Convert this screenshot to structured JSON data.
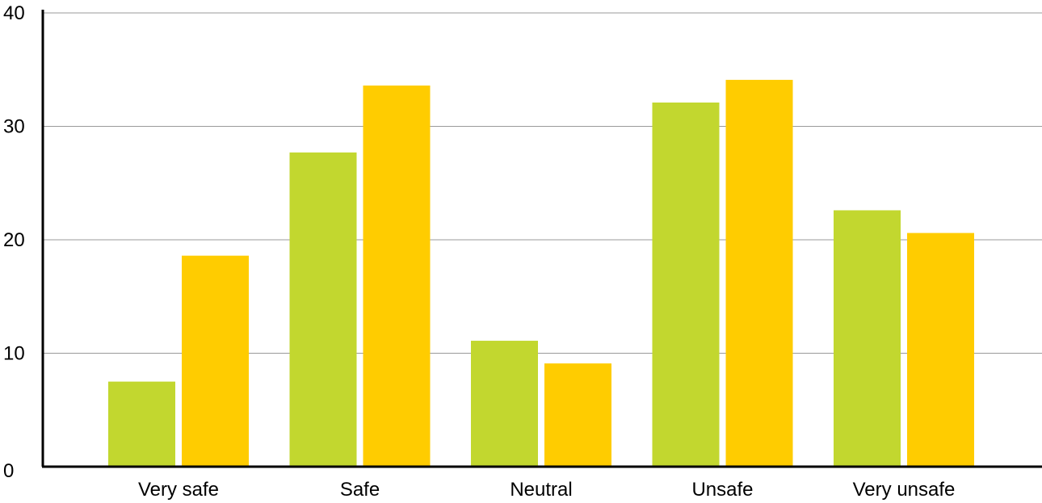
{
  "chart_data": {
    "type": "bar",
    "categories": [
      "Very safe",
      "Safe",
      "Neutral",
      "Unsafe",
      "Very unsafe"
    ],
    "series": [
      {
        "color": "#c2d72f",
        "values": [
          7.5,
          27.7,
          11.1,
          32.1,
          22.6
        ]
      },
      {
        "color": "#ffcc00",
        "values": [
          18.6,
          33.6,
          9.1,
          34.1,
          20.6
        ]
      }
    ],
    "yticks": [
      0,
      10,
      20,
      30,
      40
    ],
    "ylim": [
      0,
      40
    ],
    "grid": true,
    "title": "",
    "xlabel": "",
    "ylabel": ""
  }
}
